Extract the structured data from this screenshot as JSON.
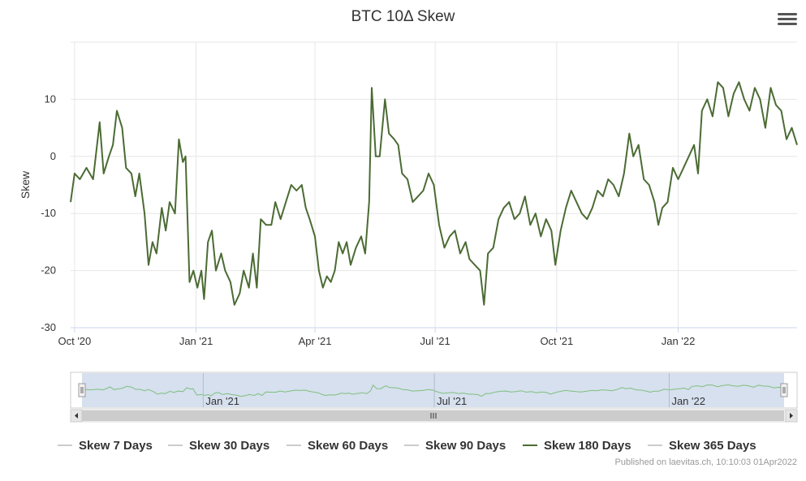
{
  "chart_data": {
    "type": "line",
    "title": "BTC 10Δ Skew",
    "ylabel": "Skew",
    "ylim": [
      -30,
      20
    ],
    "y_ticks": [
      -30,
      -20,
      -10,
      0,
      10
    ],
    "x_range": [
      "2020-09-28",
      "2022-04-01"
    ],
    "x_ticks": [
      {
        "label": "Oct '20",
        "date": "2020-10-01"
      },
      {
        "label": "Jan '21",
        "date": "2021-01-01"
      },
      {
        "label": "Apr '21",
        "date": "2021-04-01"
      },
      {
        "label": "Jul '21",
        "date": "2021-07-01"
      },
      {
        "label": "Oct '21",
        "date": "2021-10-01"
      },
      {
        "label": "Jan '22",
        "date": "2022-01-01"
      }
    ],
    "navigator_ticks": [
      {
        "label": "Jan '21",
        "date": "2021-01-01"
      },
      {
        "label": "Jul '21",
        "date": "2021-07-01"
      },
      {
        "label": "Jan '22",
        "date": "2022-01-01"
      }
    ],
    "grid": true,
    "legend_position": "bottom",
    "series": [
      {
        "name": "Skew 180 Days",
        "color": "#4b6b33",
        "points": [
          [
            "2020-09-28",
            -8
          ],
          [
            "2020-10-01",
            -3
          ],
          [
            "2020-10-05",
            -4
          ],
          [
            "2020-10-10",
            -2
          ],
          [
            "2020-10-15",
            -4
          ],
          [
            "2020-10-20",
            6
          ],
          [
            "2020-10-23",
            -3
          ],
          [
            "2020-10-27",
            0
          ],
          [
            "2020-10-30",
            2
          ],
          [
            "2020-11-02",
            8
          ],
          [
            "2020-11-06",
            5
          ],
          [
            "2020-11-09",
            -2
          ],
          [
            "2020-11-13",
            -3
          ],
          [
            "2020-11-16",
            -7
          ],
          [
            "2020-11-19",
            -3
          ],
          [
            "2020-11-23",
            -10
          ],
          [
            "2020-11-26",
            -19
          ],
          [
            "2020-11-29",
            -15
          ],
          [
            "2020-12-02",
            -17
          ],
          [
            "2020-12-06",
            -9
          ],
          [
            "2020-12-09",
            -13
          ],
          [
            "2020-12-12",
            -8
          ],
          [
            "2020-12-16",
            -10
          ],
          [
            "2020-12-19",
            3
          ],
          [
            "2020-12-22",
            -1
          ],
          [
            "2020-12-24",
            0
          ],
          [
            "2020-12-27",
            -22
          ],
          [
            "2020-12-30",
            -20
          ],
          [
            "2021-01-02",
            -23
          ],
          [
            "2021-01-05",
            -20
          ],
          [
            "2021-01-07",
            -25
          ],
          [
            "2021-01-10",
            -15
          ],
          [
            "2021-01-13",
            -13
          ],
          [
            "2021-01-16",
            -20
          ],
          [
            "2021-01-20",
            -17
          ],
          [
            "2021-01-23",
            -20
          ],
          [
            "2021-01-27",
            -22
          ],
          [
            "2021-01-30",
            -26
          ],
          [
            "2021-02-03",
            -24
          ],
          [
            "2021-02-06",
            -20
          ],
          [
            "2021-02-10",
            -23
          ],
          [
            "2021-02-13",
            -17
          ],
          [
            "2021-02-16",
            -23
          ],
          [
            "2021-02-19",
            -11
          ],
          [
            "2021-02-23",
            -12
          ],
          [
            "2021-02-27",
            -12
          ],
          [
            "2021-03-02",
            -8
          ],
          [
            "2021-03-06",
            -11
          ],
          [
            "2021-03-10",
            -8
          ],
          [
            "2021-03-14",
            -5
          ],
          [
            "2021-03-18",
            -6
          ],
          [
            "2021-03-22",
            -5
          ],
          [
            "2021-03-25",
            -9
          ],
          [
            "2021-03-28",
            -11
          ],
          [
            "2021-04-01",
            -14
          ],
          [
            "2021-04-04",
            -20
          ],
          [
            "2021-04-07",
            -23
          ],
          [
            "2021-04-10",
            -21
          ],
          [
            "2021-04-13",
            -22
          ],
          [
            "2021-04-16",
            -20
          ],
          [
            "2021-04-19",
            -15
          ],
          [
            "2021-04-22",
            -17
          ],
          [
            "2021-04-25",
            -15
          ],
          [
            "2021-04-28",
            -19
          ],
          [
            "2021-05-02",
            -16
          ],
          [
            "2021-05-06",
            -14
          ],
          [
            "2021-05-09",
            -17
          ],
          [
            "2021-05-12",
            -8
          ],
          [
            "2021-05-14",
            12
          ],
          [
            "2021-05-17",
            0
          ],
          [
            "2021-05-20",
            0
          ],
          [
            "2021-05-24",
            10
          ],
          [
            "2021-05-27",
            4
          ],
          [
            "2021-05-31",
            3
          ],
          [
            "2021-06-03",
            2
          ],
          [
            "2021-06-06",
            -3
          ],
          [
            "2021-06-10",
            -4
          ],
          [
            "2021-06-14",
            -8
          ],
          [
            "2021-06-18",
            -7
          ],
          [
            "2021-06-22",
            -6
          ],
          [
            "2021-06-26",
            -3
          ],
          [
            "2021-06-30",
            -5
          ],
          [
            "2021-07-04",
            -12
          ],
          [
            "2021-07-08",
            -16
          ],
          [
            "2021-07-12",
            -14
          ],
          [
            "2021-07-16",
            -13
          ],
          [
            "2021-07-20",
            -17
          ],
          [
            "2021-07-24",
            -15
          ],
          [
            "2021-07-27",
            -18
          ],
          [
            "2021-07-31",
            -19
          ],
          [
            "2021-08-04",
            -20
          ],
          [
            "2021-08-07",
            -26
          ],
          [
            "2021-08-10",
            -17
          ],
          [
            "2021-08-14",
            -16
          ],
          [
            "2021-08-18",
            -11
          ],
          [
            "2021-08-22",
            -9
          ],
          [
            "2021-08-26",
            -8
          ],
          [
            "2021-08-30",
            -11
          ],
          [
            "2021-09-03",
            -10
          ],
          [
            "2021-09-07",
            -7
          ],
          [
            "2021-09-11",
            -12
          ],
          [
            "2021-09-15",
            -10
          ],
          [
            "2021-09-19",
            -14
          ],
          [
            "2021-09-23",
            -11
          ],
          [
            "2021-09-27",
            -13
          ],
          [
            "2021-09-30",
            -19
          ],
          [
            "2021-10-04",
            -13
          ],
          [
            "2021-10-08",
            -9
          ],
          [
            "2021-10-12",
            -6
          ],
          [
            "2021-10-16",
            -8
          ],
          [
            "2021-10-20",
            -10
          ],
          [
            "2021-10-24",
            -11
          ],
          [
            "2021-10-28",
            -9
          ],
          [
            "2021-11-01",
            -6
          ],
          [
            "2021-11-05",
            -7
          ],
          [
            "2021-11-09",
            -4
          ],
          [
            "2021-11-13",
            -5
          ],
          [
            "2021-11-17",
            -7
          ],
          [
            "2021-11-21",
            -3
          ],
          [
            "2021-11-25",
            4
          ],
          [
            "2021-11-28",
            0
          ],
          [
            "2021-12-02",
            2
          ],
          [
            "2021-12-06",
            -4
          ],
          [
            "2021-12-10",
            -5
          ],
          [
            "2021-12-14",
            -8
          ],
          [
            "2021-12-17",
            -12
          ],
          [
            "2021-12-20",
            -9
          ],
          [
            "2021-12-24",
            -8
          ],
          [
            "2021-12-28",
            -2
          ],
          [
            "2022-01-01",
            -4
          ],
          [
            "2022-01-05",
            -2
          ],
          [
            "2022-01-09",
            0
          ],
          [
            "2022-01-13",
            2
          ],
          [
            "2022-01-16",
            -3
          ],
          [
            "2022-01-19",
            8
          ],
          [
            "2022-01-23",
            10
          ],
          [
            "2022-01-27",
            7
          ],
          [
            "2022-01-31",
            13
          ],
          [
            "2022-02-04",
            12
          ],
          [
            "2022-02-08",
            7
          ],
          [
            "2022-02-12",
            11
          ],
          [
            "2022-02-16",
            13
          ],
          [
            "2022-02-20",
            10
          ],
          [
            "2022-02-24",
            8
          ],
          [
            "2022-02-28",
            12
          ],
          [
            "2022-03-04",
            10
          ],
          [
            "2022-03-08",
            5
          ],
          [
            "2022-03-12",
            12
          ],
          [
            "2022-03-16",
            9
          ],
          [
            "2022-03-20",
            8
          ],
          [
            "2022-03-24",
            3
          ],
          [
            "2022-03-28",
            5
          ],
          [
            "2022-04-01",
            2
          ]
        ]
      }
    ]
  },
  "legend": {
    "items": [
      {
        "label": "Skew 7 Days",
        "color": "#cccccc",
        "active": false
      },
      {
        "label": "Skew 30 Days",
        "color": "#cccccc",
        "active": false
      },
      {
        "label": "Skew 60 Days",
        "color": "#cccccc",
        "active": false
      },
      {
        "label": "Skew 90 Days",
        "color": "#cccccc",
        "active": false
      },
      {
        "label": "Skew 180 Days",
        "color": "#4b6b33",
        "active": true
      },
      {
        "label": "Skew 365 Days",
        "color": "#cccccc",
        "active": false
      }
    ]
  },
  "credits": "Published on laevitas.ch, 10:10:03 01Apr2022",
  "icons": {
    "menu": "hamburger-menu-icon",
    "scroll_left": "arrow-left-icon",
    "scroll_right": "arrow-right-icon",
    "scroll_grip": "grip-icon",
    "navigator_handle": "navigator-handle-icon"
  },
  "colors": {
    "series_line": "#4b6b33",
    "navigator_line": "#7fbf7f",
    "navigator_mask": "#c8d6e8",
    "grid": "#e6e6e6"
  }
}
